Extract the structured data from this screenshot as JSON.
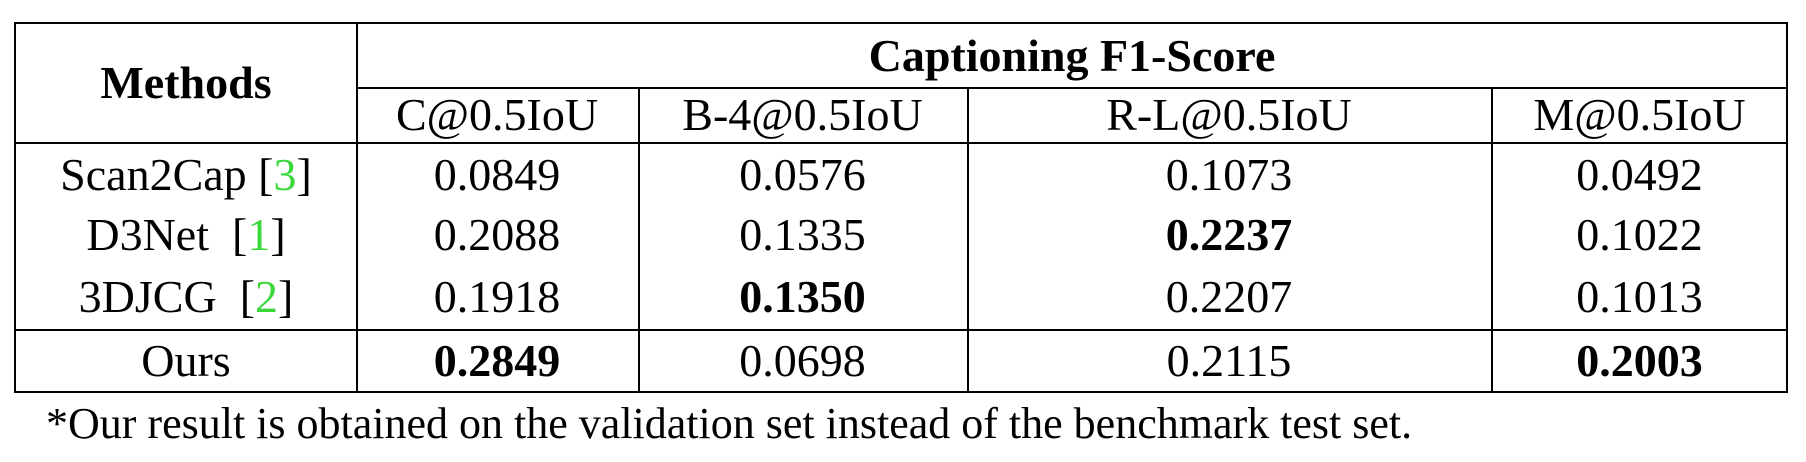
{
  "table": {
    "methods_header": "Methods",
    "group_header": "Captioning F1-Score",
    "columns": [
      "C@0.5IoU",
      "B-4@0.5IoU",
      "R-L@0.5IoU",
      "M@0.5IoU"
    ],
    "rows": [
      {
        "method": "Scan2Cap",
        "cite_open": "[",
        "cite": "3",
        "cite_close": "]",
        "values": [
          "0.0849",
          "0.0576",
          "0.1073",
          "0.0492"
        ],
        "bold": [
          false,
          false,
          false,
          false
        ]
      },
      {
        "method": "D3Net",
        "cite_open": "[",
        "cite": "1",
        "cite_close": "]",
        "values": [
          "0.2088",
          "0.1335",
          "0.2237",
          "0.1022"
        ],
        "bold": [
          false,
          false,
          true,
          false
        ]
      },
      {
        "method": "3DJCG",
        "cite_open": "[",
        "cite": "2",
        "cite_close": "]",
        "values": [
          "0.1918",
          "0.1350",
          "0.2207",
          "0.1013"
        ],
        "bold": [
          false,
          true,
          false,
          false
        ]
      },
      {
        "method": "Ours",
        "cite_open": "",
        "cite": "",
        "cite_close": "",
        "values": [
          "0.2849",
          "0.0698",
          "0.2115",
          "0.2003"
        ],
        "bold": [
          true,
          false,
          false,
          true
        ]
      }
    ],
    "citation_color": "#3ad83a"
  },
  "footnote": "*Our result is obtained on the validation set instead of the benchmark test set."
}
